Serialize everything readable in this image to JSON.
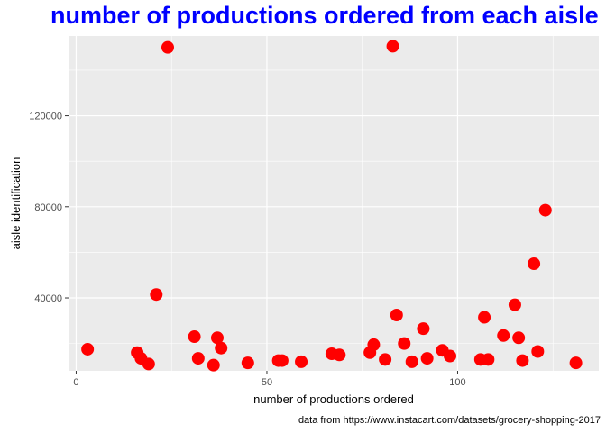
{
  "chart_data": {
    "type": "scatter",
    "title": "number of productions ordered from each aisle",
    "xlabel": "number of productions ordered",
    "ylabel": "aisle identification",
    "caption": "data from  https://www.instacart.com/datasets/grocery-shopping-2017",
    "xlim": [
      -2,
      137
    ],
    "ylim": [
      8000,
      155000
    ],
    "x_ticks": [
      0,
      50,
      100
    ],
    "y_ticks": [
      40000,
      80000,
      120000
    ],
    "y_tick_labels": [
      "40000",
      "80000",
      "120000"
    ],
    "grid": true,
    "point_color": "#ff0000",
    "panel_color": "#ebebeb",
    "title_color": "#0000ff",
    "points": [
      {
        "x": 3,
        "y": 17500
      },
      {
        "x": 16,
        "y": 16000
      },
      {
        "x": 17,
        "y": 13500
      },
      {
        "x": 19,
        "y": 11000
      },
      {
        "x": 21,
        "y": 41500
      },
      {
        "x": 24,
        "y": 150000
      },
      {
        "x": 31,
        "y": 23000
      },
      {
        "x": 32,
        "y": 13500
      },
      {
        "x": 36,
        "y": 10500
      },
      {
        "x": 37,
        "y": 22500
      },
      {
        "x": 38,
        "y": 18000
      },
      {
        "x": 45,
        "y": 11500
      },
      {
        "x": 53,
        "y": 12500
      },
      {
        "x": 54,
        "y": 12500
      },
      {
        "x": 59,
        "y": 12000
      },
      {
        "x": 67,
        "y": 15500
      },
      {
        "x": 69,
        "y": 15000
      },
      {
        "x": 77,
        "y": 16000
      },
      {
        "x": 78,
        "y": 19500
      },
      {
        "x": 81,
        "y": 13000
      },
      {
        "x": 83,
        "y": 150500
      },
      {
        "x": 84,
        "y": 32500
      },
      {
        "x": 86,
        "y": 20000
      },
      {
        "x": 88,
        "y": 12000
      },
      {
        "x": 91,
        "y": 26500
      },
      {
        "x": 92,
        "y": 13500
      },
      {
        "x": 96,
        "y": 17000
      },
      {
        "x": 98,
        "y": 14500
      },
      {
        "x": 106,
        "y": 13000
      },
      {
        "x": 107,
        "y": 31500
      },
      {
        "x": 108,
        "y": 13000
      },
      {
        "x": 112,
        "y": 23500
      },
      {
        "x": 115,
        "y": 37000
      },
      {
        "x": 116,
        "y": 22500
      },
      {
        "x": 117,
        "y": 12500
      },
      {
        "x": 120,
        "y": 55000
      },
      {
        "x": 121,
        "y": 16500
      },
      {
        "x": 123,
        "y": 78500
      },
      {
        "x": 131,
        "y": 11500
      }
    ]
  }
}
